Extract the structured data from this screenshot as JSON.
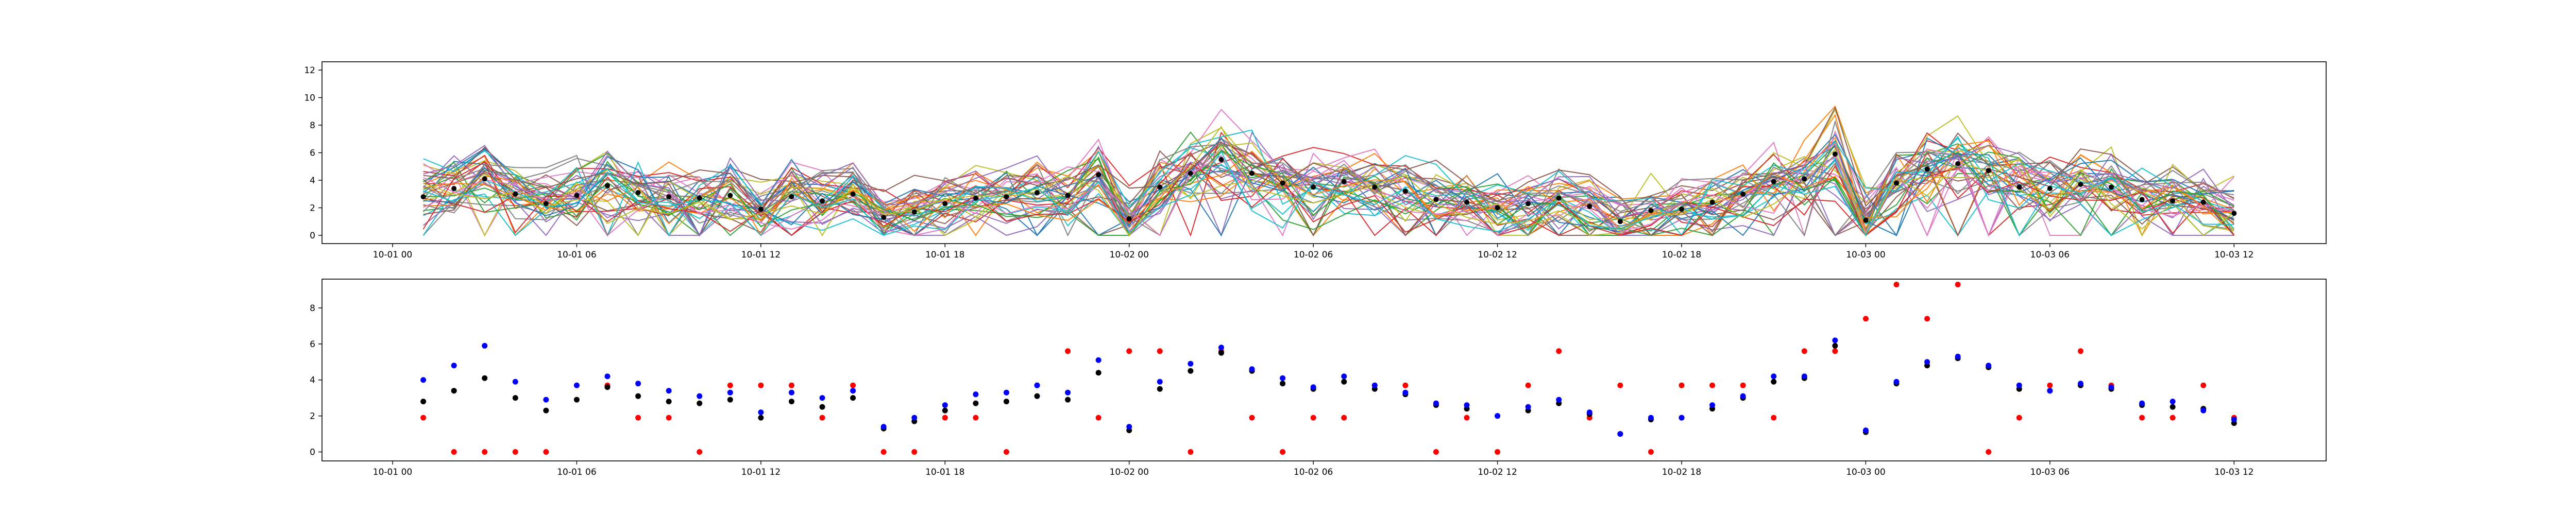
{
  "chart_data": [
    {
      "type": "line",
      "title": "",
      "xlabel": "",
      "ylabel": "",
      "x_ticks": [
        {
          "label": "10-01 00",
          "hour": 0
        },
        {
          "label": "10-01 06",
          "hour": 6
        },
        {
          "label": "10-01 12",
          "hour": 12
        },
        {
          "label": "10-01 18",
          "hour": 18
        },
        {
          "label": "10-02 00",
          "hour": 24
        },
        {
          "label": "10-02 06",
          "hour": 30
        },
        {
          "label": "10-02 12",
          "hour": 36
        },
        {
          "label": "10-02 18",
          "hour": 42
        },
        {
          "label": "10-03 00",
          "hour": 48
        },
        {
          "label": "10-03 06",
          "hour": 54
        },
        {
          "label": "10-03 12",
          "hour": 60
        }
      ],
      "xlim_hours": [
        -2.3,
        63.0
      ],
      "y_ticks": [
        0,
        2,
        4,
        6,
        8,
        10,
        12
      ],
      "ylim": [
        -0.6,
        12.6
      ],
      "grid": false,
      "legend": "none",
      "series_count": 40,
      "series_colors": [
        "#1f77b4",
        "#ff7f0e",
        "#2ca02c",
        "#d62728",
        "#9467bd",
        "#8c564b",
        "#e377c2",
        "#7f7f7f",
        "#bcbd22",
        "#17becf"
      ],
      "marker_color": "#000000",
      "mean_per_hour": [
        2.8,
        3.4,
        4.1,
        3.0,
        2.3,
        2.9,
        3.6,
        3.1,
        2.8,
        2.7,
        2.9,
        1.9,
        2.8,
        2.5,
        3.0,
        1.3,
        1.7,
        2.3,
        2.7,
        2.8,
        3.1,
        2.9,
        4.4,
        1.2,
        3.5,
        4.5,
        5.5,
        4.5,
        3.8,
        3.5,
        3.9,
        3.5,
        3.2,
        2.6,
        2.4,
        2.0,
        2.3,
        2.7,
        2.1,
        1.0,
        1.8,
        1.9,
        2.4,
        3.0,
        3.9,
        4.1,
        5.9,
        1.1,
        3.8,
        4.8,
        5.2,
        4.7,
        3.5,
        3.4,
        3.7,
        3.5,
        2.6,
        2.5,
        2.4,
        1.6
      ]
    },
    {
      "type": "scatter",
      "title": "",
      "xlabel": "",
      "ylabel": "",
      "x_ticks": [
        {
          "label": "10-01 00",
          "hour": 0
        },
        {
          "label": "10-01 06",
          "hour": 6
        },
        {
          "label": "10-01 12",
          "hour": 12
        },
        {
          "label": "10-01 18",
          "hour": 18
        },
        {
          "label": "10-02 00",
          "hour": 24
        },
        {
          "label": "10-02 06",
          "hour": 30
        },
        {
          "label": "10-02 12",
          "hour": 36
        },
        {
          "label": "10-02 18",
          "hour": 42
        },
        {
          "label": "10-03 00",
          "hour": 48
        },
        {
          "label": "10-03 06",
          "hour": 54
        },
        {
          "label": "10-03 12",
          "hour": 60
        }
      ],
      "xlim_hours": [
        -2.3,
        63.0
      ],
      "y_ticks": [
        0,
        2,
        4,
        6,
        8
      ],
      "ylim": [
        -0.5,
        9.6
      ],
      "grid": false,
      "legend": "none",
      "series": [
        {
          "color": "#ff0000",
          "hours": [
            1,
            2,
            3,
            4,
            5,
            7,
            8,
            9,
            10,
            11,
            12,
            13,
            14,
            15,
            16,
            17,
            18,
            19,
            20,
            21,
            22,
            23,
            24,
            25,
            26,
            27,
            28,
            29,
            30,
            31,
            32,
            33,
            34,
            35,
            36,
            37,
            38,
            39,
            40,
            41,
            42,
            43,
            44,
            45,
            46,
            47,
            48,
            49,
            50,
            51,
            52,
            53,
            54,
            55,
            56,
            57,
            58,
            59,
            60
          ],
          "values": [
            1.9,
            0.0,
            0.0,
            0.0,
            0.0,
            3.7,
            1.9,
            1.9,
            0.0,
            3.7,
            3.7,
            3.7,
            1.9,
            3.7,
            0.0,
            0.0,
            1.9,
            1.9,
            0.0,
            3.7,
            5.6,
            1.9,
            5.6,
            5.6,
            0.0,
            5.6,
            1.9,
            0.0,
            1.9,
            1.9,
            3.7,
            3.7,
            0.0,
            1.9,
            0.0,
            3.7,
            5.6,
            1.9,
            3.7,
            0.0,
            3.7,
            3.7,
            3.7,
            1.9,
            5.6,
            5.6,
            7.4,
            9.3,
            7.4,
            9.3,
            0.0,
            1.9,
            3.7,
            5.6,
            3.7,
            1.9,
            1.9,
            3.7,
            1.9
          ]
        },
        {
          "color": "#000000",
          "hours": [
            1,
            2,
            3,
            4,
            5,
            6,
            7,
            8,
            9,
            10,
            11,
            12,
            13,
            14,
            15,
            16,
            17,
            18,
            19,
            20,
            21,
            22,
            23,
            24,
            25,
            26,
            27,
            28,
            29,
            30,
            31,
            32,
            33,
            34,
            35,
            36,
            37,
            38,
            39,
            40,
            41,
            42,
            43,
            44,
            45,
            46,
            47,
            48,
            49,
            50,
            51,
            52,
            53,
            54,
            55,
            56,
            57,
            58,
            59,
            60
          ],
          "values": [
            2.8,
            3.4,
            4.1,
            3.0,
            2.3,
            2.9,
            3.6,
            3.1,
            2.8,
            2.7,
            2.9,
            1.9,
            2.8,
            2.5,
            3.0,
            1.3,
            1.7,
            2.3,
            2.7,
            2.8,
            3.1,
            2.9,
            4.4,
            1.2,
            3.5,
            4.5,
            5.5,
            4.5,
            3.8,
            3.5,
            3.9,
            3.5,
            3.2,
            2.6,
            2.4,
            2.0,
            2.3,
            2.7,
            2.1,
            1.0,
            1.8,
            1.9,
            2.4,
            3.0,
            3.9,
            4.1,
            5.9,
            1.1,
            3.8,
            4.8,
            5.2,
            4.7,
            3.5,
            3.4,
            3.7,
            3.5,
            2.6,
            2.5,
            2.4,
            1.6
          ]
        },
        {
          "color": "#0000ff",
          "hours": [
            1,
            2,
            3,
            4,
            5,
            6,
            7,
            8,
            9,
            10,
            11,
            12,
            13,
            14,
            15,
            16,
            17,
            18,
            19,
            20,
            21,
            22,
            23,
            24,
            25,
            26,
            27,
            28,
            29,
            30,
            31,
            32,
            33,
            34,
            35,
            36,
            37,
            38,
            39,
            40,
            41,
            42,
            43,
            44,
            45,
            46,
            47,
            48,
            49,
            50,
            51,
            52,
            53,
            54,
            55,
            56,
            57,
            58,
            59,
            60
          ],
          "values": [
            4.0,
            4.8,
            5.9,
            3.9,
            2.9,
            3.7,
            4.2,
            3.8,
            3.4,
            3.1,
            3.3,
            2.2,
            3.3,
            3.0,
            3.4,
            1.4,
            1.9,
            2.6,
            3.2,
            3.3,
            3.7,
            3.3,
            5.1,
            1.4,
            3.9,
            4.9,
            5.8,
            4.6,
            4.1,
            3.6,
            4.2,
            3.7,
            3.3,
            2.7,
            2.6,
            2.0,
            2.5,
            2.9,
            2.2,
            1.0,
            1.9,
            1.9,
            2.6,
            3.1,
            4.2,
            4.2,
            6.2,
            1.2,
            3.9,
            5.0,
            5.3,
            4.8,
            3.7,
            3.4,
            3.8,
            3.6,
            2.7,
            2.8,
            2.3,
            1.8
          ]
        }
      ]
    }
  ]
}
